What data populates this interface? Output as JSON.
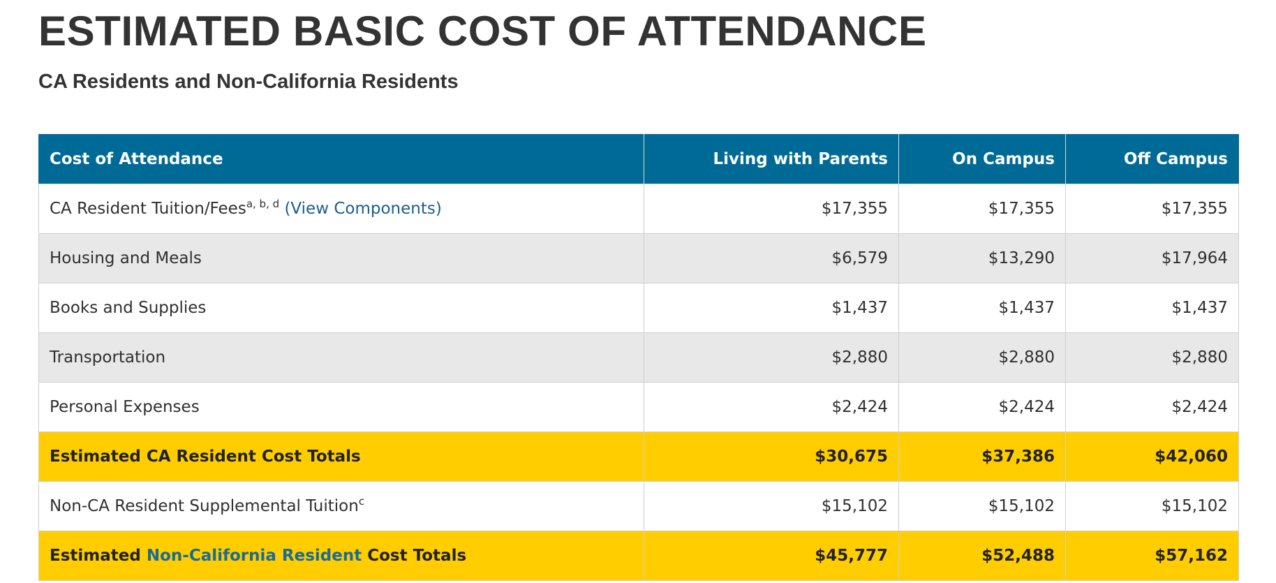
{
  "page": {
    "title": "ESTIMATED BASIC COST OF ATTENDANCE",
    "subtitle": "CA Residents and Non-California Residents"
  },
  "colors": {
    "header_bg": "#006a97",
    "total_row_bg": "#ffcd00",
    "alt_row_bg": "#e8e8e8",
    "link": "#1a5d8f"
  },
  "table": {
    "headers": [
      "Cost of Attendance",
      "Living with Parents",
      "On Campus",
      "Off Campus"
    ],
    "rows": [
      {
        "label": "CA Resident Tuition/Fees",
        "footnote": "a, b, d",
        "link_text": "(View Components)",
        "values": [
          "$17,355",
          "$17,355",
          "$17,355"
        ]
      },
      {
        "label": "Housing and Meals",
        "values": [
          "$6,579",
          "$13,290",
          "$17,964"
        ]
      },
      {
        "label": "Books and Supplies",
        "values": [
          "$1,437",
          "$1,437",
          "$1,437"
        ]
      },
      {
        "label": "Transportation",
        "values": [
          "$2,880",
          "$2,880",
          "$2,880"
        ]
      },
      {
        "label": "Personal Expenses",
        "values": [
          "$2,424",
          "$2,424",
          "$2,424"
        ]
      },
      {
        "label": "Estimated CA Resident Cost Totals",
        "values": [
          "$30,675",
          "$37,386",
          "$42,060"
        ]
      },
      {
        "label": "Non-CA Resident Supplemental Tuition",
        "footnote": "c",
        "values": [
          "$15,102",
          "$15,102",
          "$15,102"
        ]
      },
      {
        "label_prefix": "Estimated ",
        "link_text": "Non-California Resident",
        "label_suffix": " Cost Totals",
        "values": [
          "$45,777",
          "$52,488",
          "$57,162"
        ]
      }
    ]
  }
}
